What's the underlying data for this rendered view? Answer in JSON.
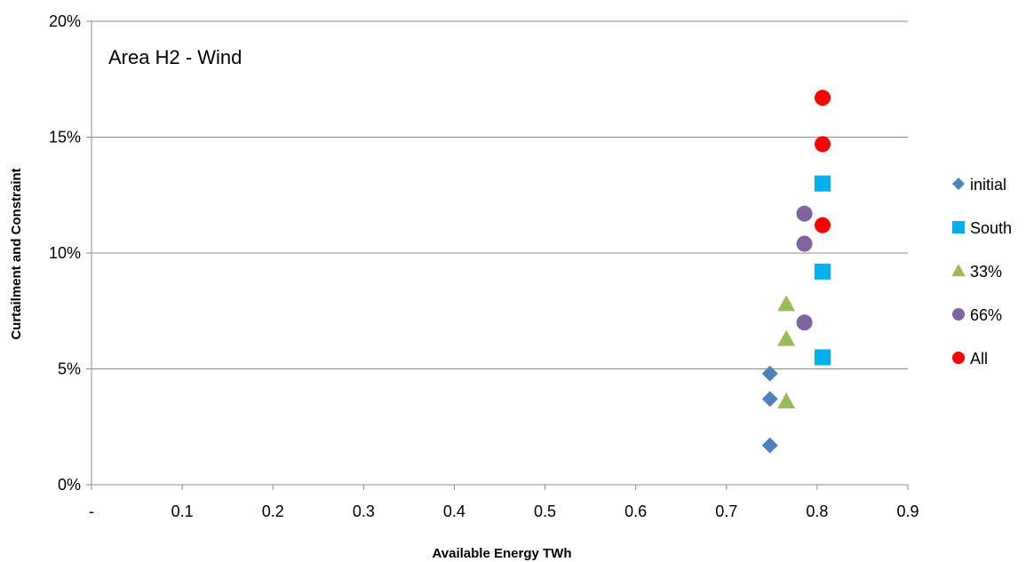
{
  "chart_data": {
    "type": "scatter",
    "title": "Area H2 - Wind",
    "xlabel": "Available Energy TWh",
    "ylabel": "Curtailment and Constraint",
    "xlim": [
      0,
      0.9
    ],
    "ylim": [
      0,
      0.2
    ],
    "x_ticks": [
      {
        "value": 0,
        "label": "-"
      },
      {
        "value": 0.1,
        "label": "0.1"
      },
      {
        "value": 0.2,
        "label": "0.2"
      },
      {
        "value": 0.3,
        "label": "0.3"
      },
      {
        "value": 0.4,
        "label": "0.4"
      },
      {
        "value": 0.5,
        "label": "0.5"
      },
      {
        "value": 0.6,
        "label": "0.6"
      },
      {
        "value": 0.7,
        "label": "0.7"
      },
      {
        "value": 0.8,
        "label": "0.8"
      },
      {
        "value": 0.9,
        "label": "0.9"
      }
    ],
    "y_ticks": [
      {
        "value": 0,
        "label": "0%"
      },
      {
        "value": 0.05,
        "label": "5%"
      },
      {
        "value": 0.1,
        "label": "10%"
      },
      {
        "value": 0.15,
        "label": "15%"
      },
      {
        "value": 0.2,
        "label": "20%"
      }
    ],
    "grid": "horizontal",
    "legend_position": "right",
    "series": [
      {
        "name": "initial",
        "marker": "diamond",
        "color": "#4f81bd",
        "points": [
          [
            0.748,
            0.048
          ],
          [
            0.748,
            0.037
          ],
          [
            0.748,
            0.017
          ]
        ]
      },
      {
        "name": "South",
        "marker": "square",
        "color": "#00b0f0",
        "points": [
          [
            0.806,
            0.13
          ],
          [
            0.806,
            0.092
          ],
          [
            0.806,
            0.055
          ]
        ]
      },
      {
        "name": "33%",
        "marker": "triangle",
        "color": "#9bbb59",
        "points": [
          [
            0.766,
            0.078
          ],
          [
            0.766,
            0.063
          ],
          [
            0.766,
            0.036
          ]
        ]
      },
      {
        "name": "66%",
        "marker": "circle",
        "color": "#8064a2",
        "points": [
          [
            0.786,
            0.117
          ],
          [
            0.786,
            0.104
          ],
          [
            0.786,
            0.07
          ]
        ]
      },
      {
        "name": "All",
        "marker": "circle",
        "color": "#ff0000",
        "points": [
          [
            0.806,
            0.167
          ],
          [
            0.806,
            0.147
          ],
          [
            0.806,
            0.112
          ]
        ]
      }
    ]
  }
}
